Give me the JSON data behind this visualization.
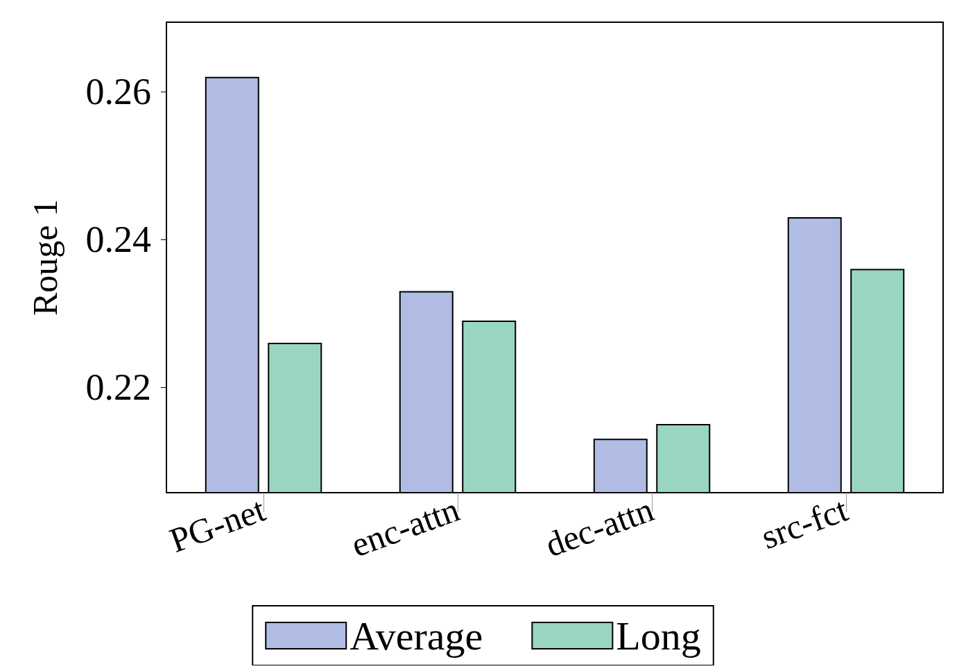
{
  "chart_data": {
    "type": "bar",
    "ylabel": "Rouge 1",
    "categories": [
      "PG-net",
      "enc-attn",
      "dec-attn",
      "src-fct"
    ],
    "series": [
      {
        "name": "Average",
        "color": "#b0bce3",
        "values": [
          0.262,
          0.233,
          0.213,
          0.243
        ]
      },
      {
        "name": "Long",
        "color": "#99d5c2",
        "values": [
          0.226,
          0.229,
          0.215,
          0.236
        ]
      }
    ],
    "ylim": [
      0.2057,
      0.2694
    ],
    "yticks": [
      0.22,
      0.24,
      0.26
    ],
    "grid": false,
    "legend": "bottom"
  }
}
